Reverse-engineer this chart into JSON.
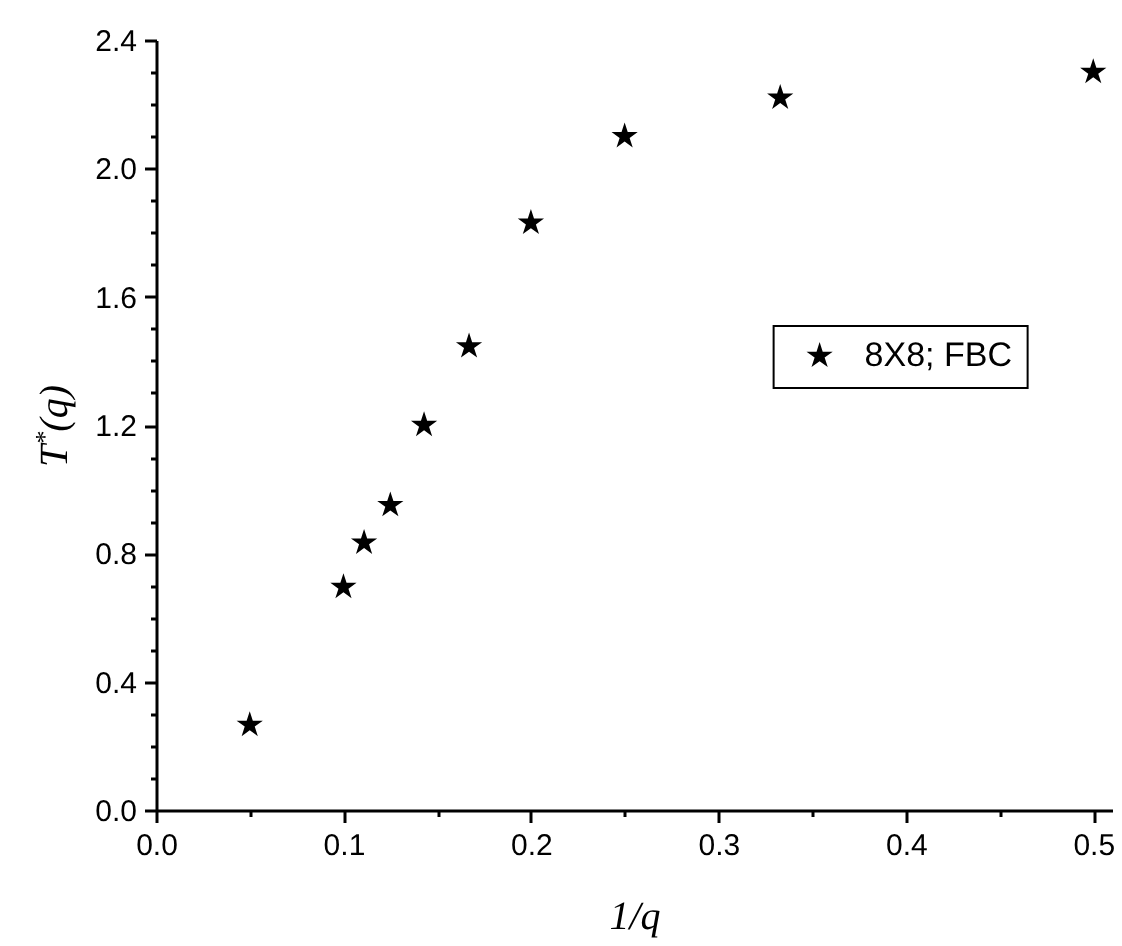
{
  "chart_data": {
    "type": "scatter",
    "xlabel": "1/q",
    "ylabel": "T$^{*}$(q)",
    "x": [
      0.05,
      0.1,
      0.111,
      0.125,
      0.143,
      0.167,
      0.2,
      0.25,
      0.333,
      0.5
    ],
    "series": [
      {
        "name": "8X8; FBC",
        "color": "#000000",
        "values": [
          0.265,
          0.695,
          0.833,
          0.95,
          1.2,
          1.445,
          1.83,
          2.1,
          2.22,
          2.3
        ]
      }
    ],
    "marker": "star",
    "legend": "right",
    "grid": false,
    "xlim": [
      0,
      0.51
    ],
    "xticks": [
      {
        "value": 0,
        "label": "0.0"
      },
      {
        "value": 0.05,
        "label": null
      },
      0.1,
      {
        "value": 0.15,
        "label": null
      },
      0.2,
      {
        "value": 0.25,
        "label": null
      },
      0.3,
      {
        "value": 0.35,
        "label": null
      },
      0.4,
      {
        "value": 0.45,
        "label": null
      },
      0.5
    ],
    "ylim": [
      0,
      2.4
    ],
    "yticks": [
      {
        "value": 0,
        "label": "0.0"
      },
      {
        "value": 0.1,
        "label": null
      },
      {
        "value": 0.2,
        "label": null
      },
      {
        "value": 0.3,
        "label": null
      },
      0.4,
      {
        "value": 0.5,
        "label": null
      },
      {
        "value": 0.6,
        "label": null
      },
      {
        "value": 0.7,
        "label": null
      },
      0.8,
      {
        "value": 0.9,
        "label": null
      },
      {
        "value": 1.0,
        "label": null
      },
      {
        "value": 1.1,
        "label": null
      },
      1.2,
      {
        "value": 1.3,
        "label": null
      },
      {
        "value": 1.4,
        "label": null
      },
      {
        "value": 1.5,
        "label": null
      },
      1.6,
      {
        "value": 1.7,
        "label": null
      },
      {
        "value": 1.8,
        "label": null
      },
      {
        "value": 1.9,
        "label": null
      },
      {
        "value": 2.0,
        "label": "2.0"
      },
      {
        "value": 2.1,
        "label": null
      },
      {
        "value": 2.2,
        "label": null
      },
      {
        "value": 2.3,
        "label": null
      },
      2.4
    ]
  }
}
